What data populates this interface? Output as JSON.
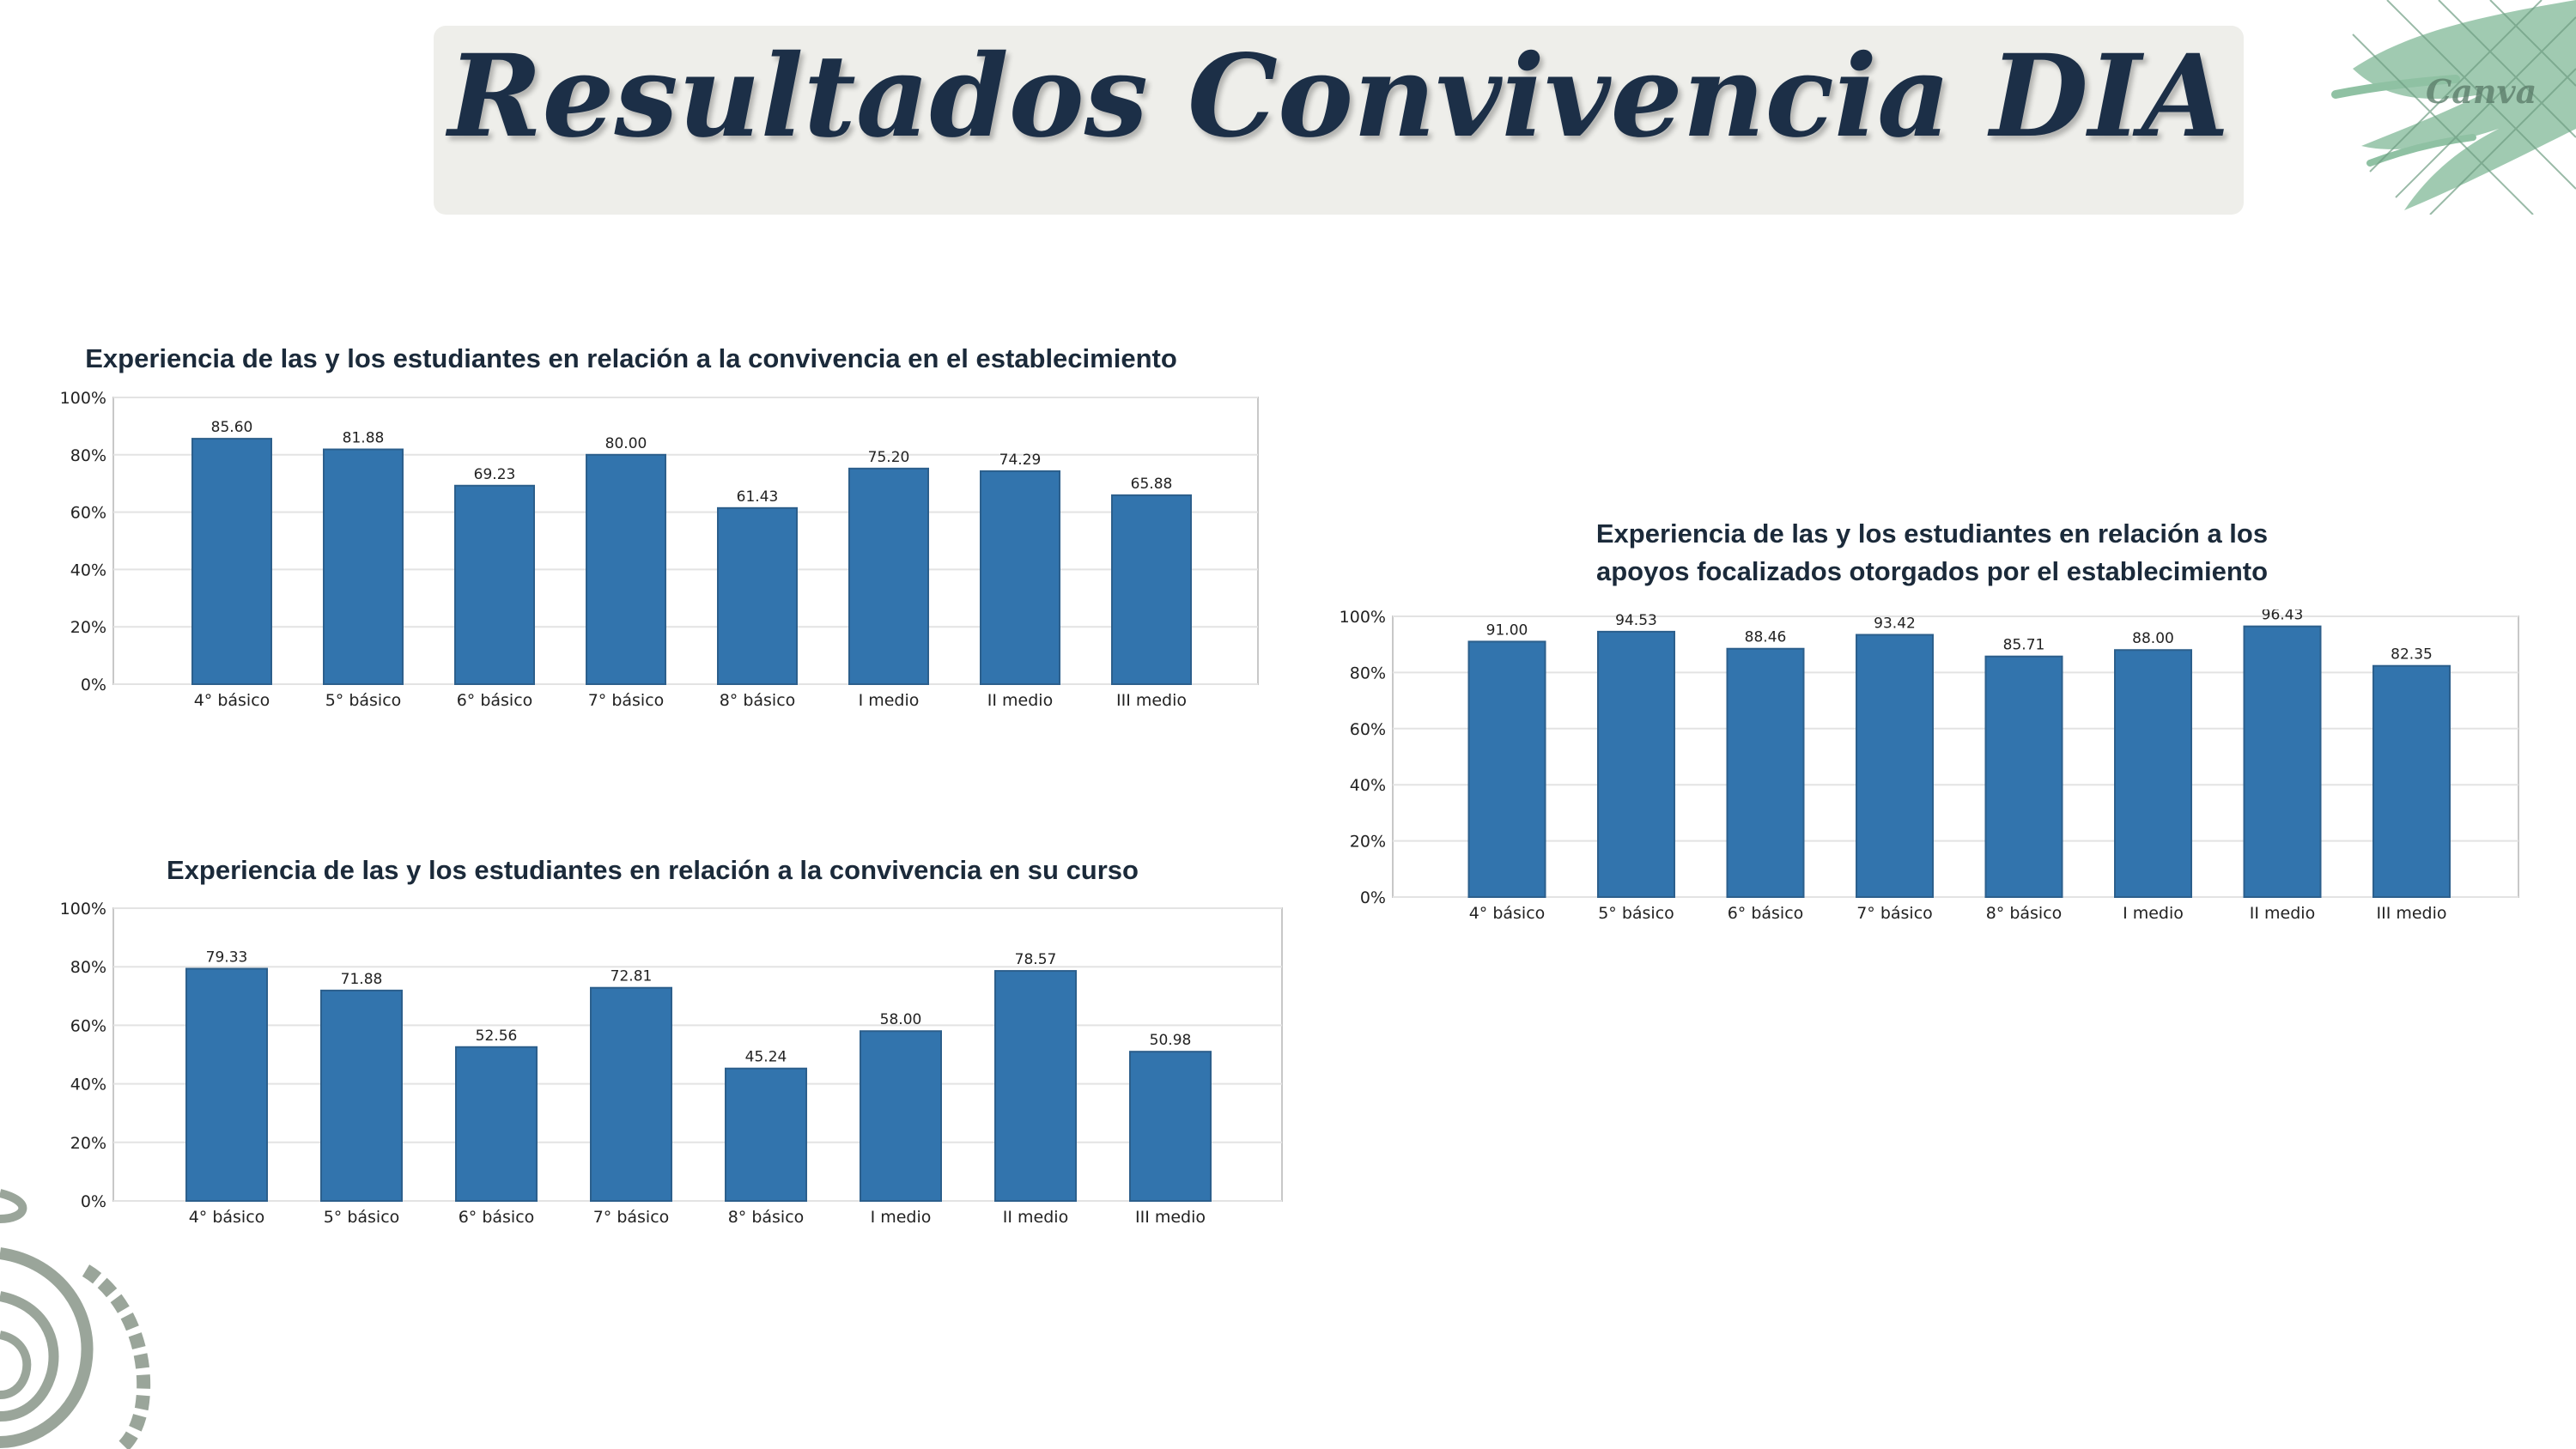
{
  "header": {
    "title": "Resultados Convivencia DIA"
  },
  "decoration": {
    "watermark_text": "Canva",
    "accent_color": "#8fc1a3",
    "line_color": "#9aa59a"
  },
  "colors": {
    "bar": "#3274ad",
    "bar_edge": "#2c5f8c",
    "grid": "#e3e3e3",
    "frame": "#c8c8c8",
    "title_text": "#1b2a3a"
  },
  "chart_data": [
    {
      "type": "bar",
      "title": "Experiencia de las y los estudiantes en relación a la convivencia en el establecimiento",
      "categories": [
        "4° básico",
        "5° básico",
        "6° básico",
        "7° básico",
        "8° básico",
        "I medio",
        "II medio",
        "III medio"
      ],
      "values": [
        85.6,
        81.88,
        69.23,
        80.0,
        61.43,
        75.2,
        74.29,
        65.88
      ],
      "value_labels": [
        "85.60",
        "81.88",
        "69.23",
        "80.00",
        "61.43",
        "75.20",
        "74.29",
        "65.88"
      ],
      "y_ticks": [
        "0%",
        "20%",
        "40%",
        "60%",
        "80%",
        "100%"
      ],
      "ylim": [
        0,
        100
      ],
      "grid": true
    },
    {
      "type": "bar",
      "title": "Experiencia de las y los estudiantes en relación a los apoyos focalizados otorgados por el establecimiento",
      "title_lines": [
        "Experiencia de las y los estudiantes en relación a los",
        "apoyos focalizados otorgados por el establecimiento"
      ],
      "categories": [
        "4° básico",
        "5° básico",
        "6° básico",
        "7° básico",
        "8° básico",
        "I medio",
        "II medio",
        "III medio"
      ],
      "values": [
        91.0,
        94.53,
        88.46,
        93.42,
        85.71,
        88.0,
        96.43,
        82.35
      ],
      "value_labels": [
        "91.00",
        "94.53",
        "88.46",
        "93.42",
        "85.71",
        "88.00",
        "96.43",
        "82.35"
      ],
      "y_ticks": [
        "0%",
        "20%",
        "40%",
        "60%",
        "80%",
        "100%"
      ],
      "ylim": [
        0,
        100
      ],
      "grid": true
    },
    {
      "type": "bar",
      "title": "Experiencia de las y los estudiantes en relación a la convivencia en su curso",
      "categories": [
        "4° básico",
        "5° básico",
        "6° básico",
        "7° básico",
        "8° básico",
        "I medio",
        "II medio",
        "III medio"
      ],
      "values": [
        79.33,
        71.88,
        52.56,
        72.81,
        45.24,
        58.0,
        78.57,
        50.98
      ],
      "value_labels": [
        "79.33",
        "71.88",
        "52.56",
        "72.81",
        "45.24",
        "58.00",
        "78.57",
        "50.98"
      ],
      "y_ticks": [
        "0%",
        "20%",
        "40%",
        "60%",
        "80%",
        "100%"
      ],
      "ylim": [
        0,
        100
      ],
      "grid": true
    }
  ]
}
